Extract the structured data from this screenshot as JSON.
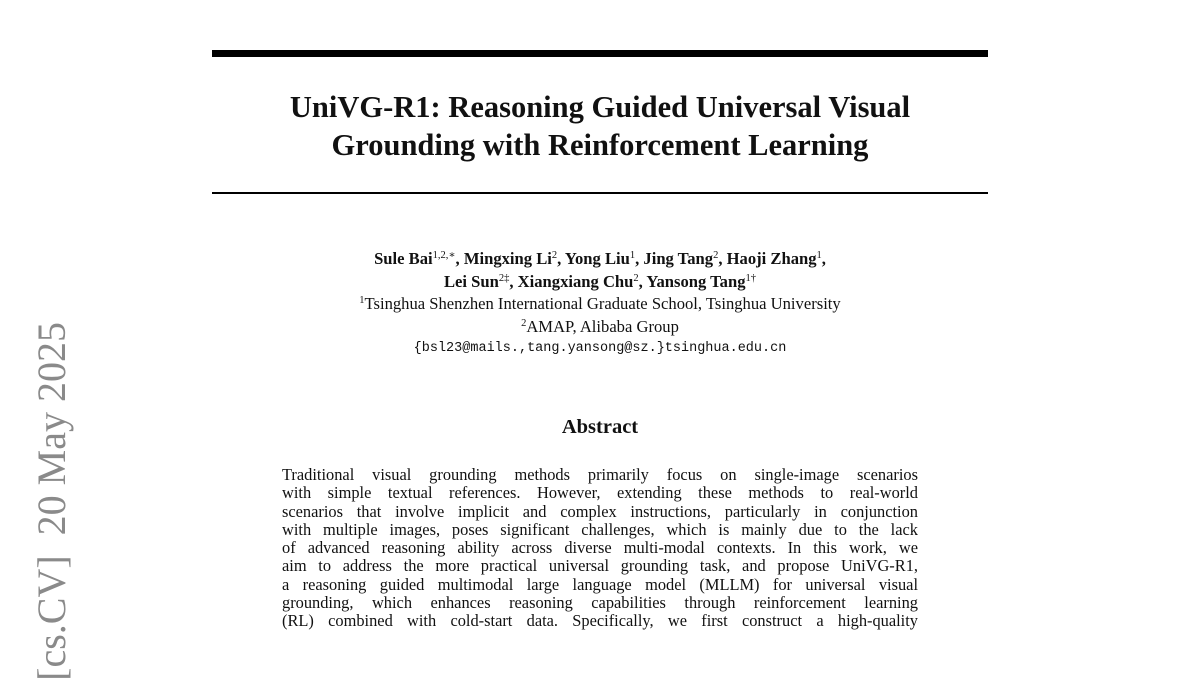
{
  "arxiv_stamp": "[cs.CV]  20 May 2025",
  "title": {
    "lines": [
      "UniVG-R1: Reasoning Guided Universal Visual",
      "Grounding with Reinforcement Learning"
    ]
  },
  "authors": {
    "line1": [
      {
        "name": "Sule Bai",
        "sup": "1,2,∗",
        "sep": ", "
      },
      {
        "name": "Mingxing Li",
        "sup": "2",
        "sep": ", "
      },
      {
        "name": "Yong Liu",
        "sup": "1",
        "sep": ", "
      },
      {
        "name": "Jing Tang",
        "sup": "2",
        "sep": ", "
      },
      {
        "name": "Haoji Zhang",
        "sup": "1",
        "sep": ","
      }
    ],
    "line2": [
      {
        "name": "Lei Sun",
        "sup": "2‡",
        "sep": ", "
      },
      {
        "name": "Xiangxiang Chu",
        "sup": "2",
        "sep": ", "
      },
      {
        "name": "Yansong Tang",
        "sup": "1†",
        "sep": ""
      }
    ],
    "affiliations": [
      {
        "sup": "1",
        "text": "Tsinghua Shenzhen International Graduate School, Tsinghua University"
      },
      {
        "sup": "2",
        "text": "AMAP, Alibaba Group"
      }
    ],
    "email": "{bsl23@mails.,tang.yansong@sz.}tsinghua.edu.cn"
  },
  "abstract": {
    "heading": "Abstract",
    "lines": [
      "Traditional visual grounding methods primarily focus on single-image scenarios",
      "with simple textual references. However, extending these methods to real-world",
      "scenarios that involve implicit and complex instructions, particularly in conjunction",
      "with multiple images, poses significant challenges, which is mainly due to the lack",
      "of advanced reasoning ability across diverse multi-modal contexts. In this work, we",
      "aim to address the more practical universal grounding task, and propose UniVG-R1,",
      "a reasoning guided multimodal large language model (MLLM) for universal visual",
      "grounding, which enhances reasoning capabilities through reinforcement learning",
      "(RL) combined with cold-start data. Specifically, we first construct a high-quality"
    ]
  }
}
